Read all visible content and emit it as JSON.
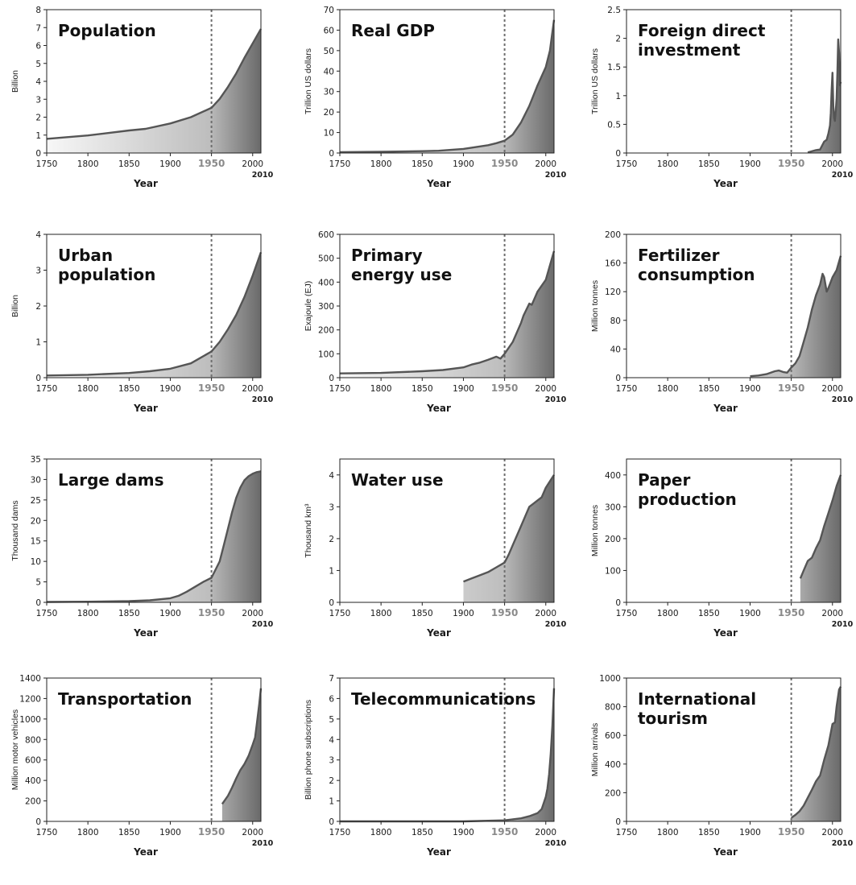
{
  "chart_data": [
    {
      "type": "area",
      "title_lines": [
        "Population"
      ],
      "xlabel": "Year",
      "ylabel": "Billion",
      "xlim": [
        1750,
        2010
      ],
      "ylim": [
        0,
        8
      ],
      "yticks": [
        0,
        1,
        2,
        3,
        4,
        5,
        6,
        7,
        8
      ],
      "ytick_labels": [
        "0",
        "1",
        "2",
        "3",
        "4",
        "5",
        "6",
        "7",
        "8"
      ],
      "xticks": [
        1750,
        1800,
        1850,
        1900,
        1950,
        2000
      ],
      "xtick_labels": [
        "1750",
        "1800",
        "1850",
        "1900",
        "1950",
        "2000"
      ],
      "extra_xlabel": "2010",
      "reference_x": 1950,
      "series": [
        {
          "x": [
            1750,
            1800,
            1850,
            1870,
            1900,
            1925,
            1950,
            1960,
            1970,
            1980,
            1990,
            2000,
            2010
          ],
          "values": [
            0.79,
            0.98,
            1.26,
            1.35,
            1.65,
            2.0,
            2.52,
            3.02,
            3.69,
            4.44,
            5.31,
            6.12,
            6.92
          ]
        }
      ]
    },
    {
      "type": "area",
      "title_lines": [
        "Real GDP"
      ],
      "xlabel": "Year",
      "ylabel": "Trillion US dollars",
      "xlim": [
        1750,
        2010
      ],
      "ylim": [
        0,
        70
      ],
      "yticks": [
        0,
        10,
        20,
        30,
        40,
        50,
        60,
        70
      ],
      "ytick_labels": [
        "0",
        "10",
        "20",
        "30",
        "40",
        "50",
        "60",
        "70"
      ],
      "xticks": [
        1750,
        1800,
        1850,
        1900,
        1950,
        2000
      ],
      "xtick_labels": [
        "1750",
        "1800",
        "1850",
        "1900",
        "1950",
        "2000"
      ],
      "extra_xlabel": "2010",
      "reference_x": 1950,
      "series": [
        {
          "x": [
            1750,
            1800,
            1850,
            1870,
            1900,
            1913,
            1930,
            1940,
            1950,
            1960,
            1970,
            1980,
            1990,
            2000,
            2005,
            2010
          ],
          "values": [
            0.4,
            0.6,
            0.9,
            1.1,
            2.0,
            2.8,
            3.8,
            4.8,
            6.0,
            9.0,
            15.0,
            23.0,
            33.0,
            42.0,
            50.0,
            65.0
          ]
        }
      ]
    },
    {
      "type": "area",
      "title_lines": [
        "Foreign direct",
        "investment"
      ],
      "xlabel": "Year",
      "ylabel": "Trillion US dollars",
      "xlim": [
        1750,
        2010
      ],
      "ylim": [
        0,
        2.5
      ],
      "yticks": [
        0,
        0.5,
        1,
        1.5,
        2,
        2.5
      ],
      "ytick_labels": [
        "0",
        "0.5",
        "1",
        "1.5",
        "2",
        "2.5"
      ],
      "xticks": [
        1750,
        1800,
        1850,
        1900,
        1950,
        2000
      ],
      "xtick_labels": [
        "1750",
        "1800",
        "1850",
        "1900",
        "1950",
        "2000"
      ],
      "extra_xlabel": "2010",
      "reference_x": 1950,
      "series": [
        {
          "x": [
            1970,
            1980,
            1985,
            1990,
            1993,
            1995,
            1997,
            1998,
            1999,
            2000,
            2001,
            2002,
            2003,
            2004,
            2005,
            2006,
            2007,
            2008,
            2009,
            2010
          ],
          "values": [
            0.01,
            0.05,
            0.06,
            0.2,
            0.23,
            0.34,
            0.48,
            0.7,
            1.08,
            1.4,
            0.83,
            0.62,
            0.56,
            0.74,
            0.95,
            1.4,
            1.98,
            1.74,
            1.18,
            1.24
          ]
        }
      ]
    },
    {
      "type": "area",
      "title_lines": [
        "Urban",
        "population"
      ],
      "xlabel": "Year",
      "ylabel": "Billion",
      "xlim": [
        1750,
        2010
      ],
      "ylim": [
        0,
        4
      ],
      "yticks": [
        0,
        1,
        2,
        3,
        4
      ],
      "ytick_labels": [
        "0",
        "1",
        "2",
        "3",
        "4"
      ],
      "xticks": [
        1750,
        1800,
        1850,
        1900,
        1950,
        2000
      ],
      "xtick_labels": [
        "1750",
        "1800",
        "1850",
        "1900",
        "1950",
        "2000"
      ],
      "extra_xlabel": "2010",
      "reference_x": 1950,
      "series": [
        {
          "x": [
            1750,
            1800,
            1850,
            1875,
            1900,
            1925,
            1950,
            1960,
            1970,
            1980,
            1990,
            2000,
            2010
          ],
          "values": [
            0.06,
            0.08,
            0.13,
            0.18,
            0.25,
            0.4,
            0.73,
            1.0,
            1.35,
            1.75,
            2.25,
            2.85,
            3.5
          ]
        }
      ]
    },
    {
      "type": "area",
      "title_lines": [
        "Primary",
        "energy use"
      ],
      "xlabel": "Year",
      "ylabel": "Exajoule (EJ)",
      "xlim": [
        1750,
        2010
      ],
      "ylim": [
        0,
        600
      ],
      "yticks": [
        0,
        100,
        200,
        300,
        400,
        500,
        600
      ],
      "ytick_labels": [
        "0",
        "100",
        "200",
        "300",
        "400",
        "500",
        "600"
      ],
      "xticks": [
        1750,
        1800,
        1850,
        1900,
        1950,
        2000
      ],
      "xtick_labels": [
        "1750",
        "1800",
        "1850",
        "1900",
        "1950",
        "2000"
      ],
      "extra_xlabel": "2010",
      "reference_x": 1950,
      "series": [
        {
          "x": [
            1750,
            1800,
            1850,
            1875,
            1900,
            1910,
            1920,
            1930,
            1940,
            1945,
            1950,
            1960,
            1970,
            1973,
            1980,
            1983,
            1990,
            2000,
            2005,
            2010
          ],
          "values": [
            18,
            20,
            27,
            32,
            43,
            55,
            63,
            75,
            88,
            80,
            100,
            150,
            230,
            260,
            310,
            305,
            360,
            410,
            470,
            530
          ]
        }
      ]
    },
    {
      "type": "area",
      "title_lines": [
        "Fertilizer",
        "consumption"
      ],
      "xlabel": "Year",
      "ylabel": "Million tonnes",
      "xlim": [
        1750,
        2010
      ],
      "ylim": [
        0,
        200
      ],
      "yticks": [
        0,
        40,
        80,
        120,
        160,
        200
      ],
      "ytick_labels": [
        "0",
        "40",
        "80",
        "120",
        "160",
        "200"
      ],
      "xticks": [
        1750,
        1800,
        1850,
        1900,
        1950,
        2000
      ],
      "xtick_labels": [
        "1750",
        "1800",
        "1850",
        "1900",
        "1950",
        "2000"
      ],
      "extra_xlabel": "2010",
      "reference_x": 1950,
      "series": [
        {
          "x": [
            1900,
            1910,
            1920,
            1930,
            1935,
            1940,
            1945,
            1950,
            1955,
            1960,
            1965,
            1970,
            1975,
            1980,
            1985,
            1988,
            1990,
            1993,
            1995,
            2000,
            2005,
            2010
          ],
          "values": [
            2,
            3,
            5,
            9,
            10,
            8,
            7,
            14,
            20,
            30,
            50,
            70,
            95,
            115,
            130,
            145,
            140,
            120,
            125,
            140,
            150,
            170
          ]
        }
      ]
    },
    {
      "type": "area",
      "title_lines": [
        "Large dams"
      ],
      "xlabel": "Year",
      "ylabel": "Thousand dams",
      "xlim": [
        1750,
        2010
      ],
      "ylim": [
        0,
        35
      ],
      "yticks": [
        0,
        5,
        10,
        15,
        20,
        25,
        30,
        35
      ],
      "ytick_labels": [
        "0",
        "5",
        "10",
        "15",
        "20",
        "25",
        "30",
        "35"
      ],
      "xticks": [
        1750,
        1800,
        1850,
        1900,
        1950,
        2000
      ],
      "xtick_labels": [
        "1750",
        "1800",
        "1850",
        "1900",
        "1950",
        "2000"
      ],
      "extra_xlabel": "2010",
      "reference_x": 1950,
      "series": [
        {
          "x": [
            1750,
            1800,
            1850,
            1875,
            1900,
            1910,
            1920,
            1930,
            1940,
            1950,
            1960,
            1965,
            1970,
            1975,
            1980,
            1985,
            1990,
            1995,
            2000,
            2005,
            2010
          ],
          "values": [
            0.1,
            0.15,
            0.3,
            0.5,
            1.0,
            1.6,
            2.6,
            3.8,
            5.0,
            6.0,
            10.0,
            14.0,
            18.0,
            22.0,
            25.5,
            28.0,
            29.8,
            30.8,
            31.4,
            31.8,
            32.0
          ]
        }
      ]
    },
    {
      "type": "area",
      "title_lines": [
        "Water use"
      ],
      "xlabel": "Year",
      "ylabel": "Thousand km³",
      "xlim": [
        1750,
        2010
      ],
      "ylim": [
        0,
        4.5
      ],
      "yticks": [
        0,
        1,
        2,
        3,
        4
      ],
      "ytick_labels": [
        "0",
        "1",
        "2",
        "3",
        "4"
      ],
      "xticks": [
        1750,
        1800,
        1850,
        1900,
        1950,
        2000
      ],
      "xtick_labels": [
        "1750",
        "1800",
        "1850",
        "1900",
        "1950",
        "2000"
      ],
      "extra_xlabel": "2010",
      "reference_x": 1950,
      "series": [
        {
          "x": [
            1900,
            1910,
            1920,
            1930,
            1940,
            1950,
            1955,
            1960,
            1965,
            1970,
            1975,
            1980,
            1985,
            1990,
            1995,
            2000,
            2005,
            2010
          ],
          "values": [
            0.65,
            0.75,
            0.85,
            0.95,
            1.1,
            1.25,
            1.5,
            1.8,
            2.1,
            2.4,
            2.7,
            3.0,
            3.1,
            3.2,
            3.3,
            3.6,
            3.8,
            4.0
          ]
        }
      ]
    },
    {
      "type": "area",
      "title_lines": [
        "Paper",
        "production"
      ],
      "xlabel": "Year",
      "ylabel": "Million tonnes",
      "xlim": [
        1750,
        2010
      ],
      "ylim": [
        0,
        450
      ],
      "yticks": [
        0,
        100,
        200,
        300,
        400
      ],
      "ytick_labels": [
        "0",
        "100",
        "200",
        "300",
        "400"
      ],
      "xticks": [
        1750,
        1800,
        1850,
        1900,
        1950,
        2000
      ],
      "xtick_labels": [
        "1750",
        "1800",
        "1850",
        "1900",
        "1950",
        "2000"
      ],
      "extra_xlabel": "2010",
      "reference_x": 1950,
      "series": [
        {
          "x": [
            1961,
            1965,
            1970,
            1975,
            1980,
            1985,
            1990,
            1995,
            2000,
            2005,
            2010
          ],
          "values": [
            75,
            100,
            130,
            140,
            170,
            195,
            240,
            280,
            320,
            365,
            400
          ]
        }
      ]
    },
    {
      "type": "area",
      "title_lines": [
        "Transportation"
      ],
      "xlabel": "Year",
      "ylabel": "Million motor vehicles",
      "xlim": [
        1750,
        2010
      ],
      "ylim": [
        0,
        1400
      ],
      "yticks": [
        0,
        200,
        400,
        600,
        800,
        1000,
        1200,
        1400
      ],
      "ytick_labels": [
        "0",
        "200",
        "400",
        "600",
        "800",
        "1000",
        "1200",
        "1400"
      ],
      "xticks": [
        1750,
        1800,
        1850,
        1900,
        1950,
        2000
      ],
      "xtick_labels": [
        "1750",
        "1800",
        "1850",
        "1900",
        "1950",
        "2000"
      ],
      "extra_xlabel": "2010",
      "reference_x": 1950,
      "series": [
        {
          "x": [
            1963,
            1970,
            1975,
            1980,
            1985,
            1990,
            1995,
            2000,
            2003,
            2005,
            2008,
            2010
          ],
          "values": [
            170,
            250,
            330,
            420,
            500,
            560,
            640,
            750,
            820,
            950,
            1150,
            1300
          ]
        }
      ]
    },
    {
      "type": "area",
      "title_lines": [
        "Telecommunications"
      ],
      "xlabel": "Year",
      "ylabel": "Billion phone subscriptions",
      "xlim": [
        1750,
        2010
      ],
      "ylim": [
        0,
        7
      ],
      "yticks": [
        0,
        1,
        2,
        3,
        4,
        5,
        6,
        7
      ],
      "ytick_labels": [
        "0",
        "1",
        "2",
        "3",
        "4",
        "5",
        "6",
        "7"
      ],
      "xticks": [
        1750,
        1800,
        1850,
        1900,
        1950,
        2000
      ],
      "xtick_labels": [
        "1750",
        "1800",
        "1850",
        "1900",
        "1950",
        "2000"
      ],
      "extra_xlabel": "2010",
      "reference_x": 1950,
      "series": [
        {
          "x": [
            1750,
            1900,
            1950,
            1960,
            1970,
            1980,
            1990,
            1995,
            2000,
            2002,
            2004,
            2006,
            2008,
            2010
          ],
          "values": [
            0,
            0,
            0.05,
            0.1,
            0.15,
            0.25,
            0.4,
            0.6,
            1.2,
            1.6,
            2.3,
            3.3,
            4.7,
            6.5
          ]
        }
      ]
    },
    {
      "type": "area",
      "title_lines": [
        "International",
        "tourism"
      ],
      "xlabel": "Year",
      "ylabel": "Million arrivals",
      "xlim": [
        1750,
        2010
      ],
      "ylim": [
        0,
        1000
      ],
      "yticks": [
        0,
        200,
        400,
        600,
        800,
        1000
      ],
      "ytick_labels": [
        "0",
        "200",
        "400",
        "600",
        "800",
        "1000"
      ],
      "xticks": [
        1750,
        1800,
        1850,
        1900,
        1950,
        2000
      ],
      "xtick_labels": [
        "1750",
        "1800",
        "1850",
        "1900",
        "1950",
        "2000"
      ],
      "extra_xlabel": "2010",
      "reference_x": 1950,
      "series": [
        {
          "x": [
            1950,
            1955,
            1960,
            1965,
            1970,
            1975,
            1980,
            1985,
            1990,
            1995,
            2000,
            2003,
            2005,
            2008,
            2010
          ],
          "values": [
            25,
            45,
            70,
            110,
            165,
            220,
            280,
            320,
            430,
            530,
            680,
            690,
            800,
            920,
            940
          ]
        }
      ]
    }
  ]
}
